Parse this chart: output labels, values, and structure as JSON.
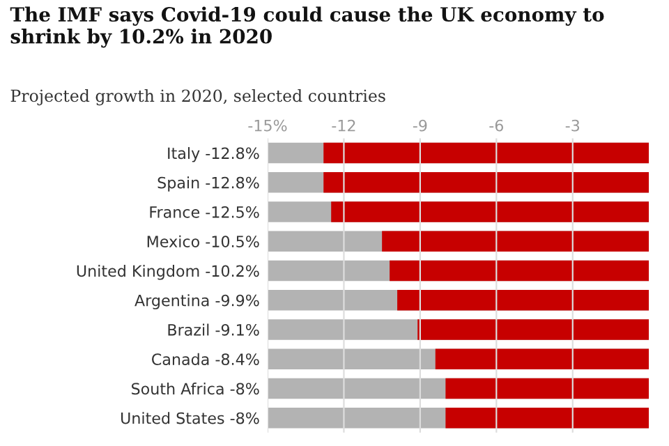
{
  "chart_data": {
    "type": "bar",
    "orientation": "horizontal",
    "title": "The IMF says Covid-19 could cause the UK economy to shrink by 10.2% in 2020",
    "subtitle": "Projected growth in 2020, selected countries",
    "categories": [
      "Italy",
      "Spain",
      "France",
      "Mexico",
      "United Kingdom",
      "Argentina",
      "Brazil",
      "Canada",
      "South Africa",
      "United States"
    ],
    "values": [
      -12.8,
      -12.8,
      -12.5,
      -10.5,
      -10.2,
      -9.9,
      -9.1,
      -8.4,
      -8,
      -8
    ],
    "value_labels": [
      "-12.8%",
      "-12.8%",
      "-12.5%",
      "-10.5%",
      "-10.2%",
      "-9.9%",
      "-9.1%",
      "-8.4%",
      "-8%",
      "-8%"
    ],
    "color": "#c70000",
    "xlim": [
      -15,
      0
    ],
    "xticks": [
      {
        "value": -15,
        "label": "-15%"
      },
      -12,
      -9,
      -6,
      -3
    ],
    "grid": "x"
  }
}
